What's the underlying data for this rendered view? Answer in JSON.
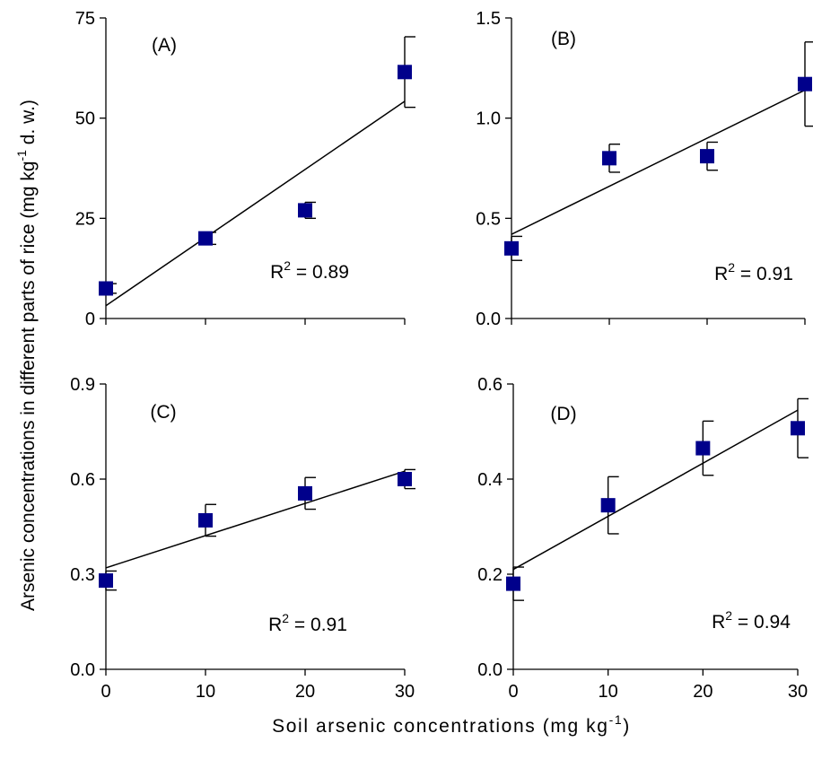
{
  "chart_data": {
    "type": "scatter",
    "xlabel_parts": [
      "Soil arsenic concentrations (mg kg",
      "-1",
      ")"
    ],
    "ylabel_parts": [
      "Arsenic concentrations in different parts of rice (mg kg",
      "-1",
      " d. w.)"
    ],
    "xticks": [
      0,
      10,
      20,
      30
    ],
    "panels": [
      {
        "label": "(A)",
        "r2": {
          "base": "R",
          "sup": "2",
          "value": " = 0.89"
        },
        "xlim": [
          0,
          30
        ],
        "ylim": [
          0,
          75
        ],
        "yticks": [
          "0",
          "25",
          "50",
          "75"
        ],
        "ytick_values": [
          0,
          25,
          50,
          75
        ],
        "points": [
          {
            "x": 0,
            "y": 7.5,
            "err": 1.2
          },
          {
            "x": 10,
            "y": 20,
            "err": 1.5
          },
          {
            "x": 20,
            "y": 27,
            "err": 2.0
          },
          {
            "x": 30,
            "y": 61.5,
            "err": 8.8
          }
        ],
        "fit": {
          "y0": 3.2,
          "y30": 54.2
        }
      },
      {
        "label": "(B)",
        "r2": {
          "base": "R",
          "sup": "2",
          "value": " = 0.91"
        },
        "xlim": [
          0,
          30
        ],
        "ylim": [
          0,
          1.5
        ],
        "yticks": [
          "0.0",
          "0.5",
          "1.0",
          "1.5"
        ],
        "ytick_values": [
          0,
          0.5,
          1.0,
          1.5
        ],
        "points": [
          {
            "x": 0,
            "y": 0.35,
            "err": 0.06
          },
          {
            "x": 10,
            "y": 0.8,
            "err": 0.07
          },
          {
            "x": 20,
            "y": 0.81,
            "err": 0.07
          },
          {
            "x": 30,
            "y": 1.17,
            "err": 0.21
          }
        ],
        "fit": {
          "y0": 0.42,
          "y30": 1.14
        }
      },
      {
        "label": "(C)",
        "r2": {
          "base": "R",
          "sup": "2",
          "value": " = 0.91"
        },
        "xlim": [
          0,
          30
        ],
        "ylim": [
          0,
          0.9
        ],
        "yticks": [
          "0.0",
          "0.3",
          "0.6",
          "0.9"
        ],
        "ytick_values": [
          0,
          0.3,
          0.6,
          0.9
        ],
        "points": [
          {
            "x": 0,
            "y": 0.28,
            "err": 0.03
          },
          {
            "x": 10,
            "y": 0.47,
            "err": 0.05
          },
          {
            "x": 20,
            "y": 0.555,
            "err": 0.05
          },
          {
            "x": 30,
            "y": 0.6,
            "err": 0.03
          }
        ],
        "fit": {
          "y0": 0.32,
          "y30": 0.625
        }
      },
      {
        "label": "(D)",
        "r2": {
          "base": "R",
          "sup": "2",
          "value": " = 0.94"
        },
        "xlim": [
          0,
          30
        ],
        "ylim": [
          0,
          0.6
        ],
        "yticks": [
          "0.0",
          "0.2",
          "0.4",
          "0.6"
        ],
        "ytick_values": [
          0,
          0.2,
          0.4,
          0.6
        ],
        "points": [
          {
            "x": 0,
            "y": 0.18,
            "err": 0.035
          },
          {
            "x": 10,
            "y": 0.345,
            "err": 0.06
          },
          {
            "x": 20,
            "y": 0.465,
            "err": 0.057
          },
          {
            "x": 30,
            "y": 0.507,
            "err": 0.062
          }
        ],
        "fit": {
          "y0": 0.21,
          "y30": 0.545
        }
      }
    ],
    "marker_color": "#00008b",
    "line_color": "#000000",
    "grid": false
  }
}
